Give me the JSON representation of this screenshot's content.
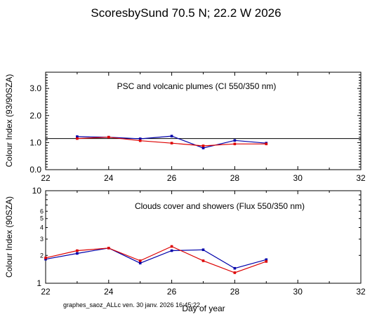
{
  "figure": {
    "title": "ScoresbySund  70.5 N; 22.2 W    2026",
    "footer_note": "graphes_saoz_ALLc  ven. 30 janv. 2026 16:45:22",
    "xlabel": "Day of year"
  },
  "colors": {
    "series_blue": "#0000aa",
    "series_red": "#dd0000",
    "axis": "#000000"
  },
  "chart_data": [
    {
      "type": "line",
      "annotation": "PSC and volcanic plumes (CI 550/350 nm)",
      "ylabel": "Colour Index (93/90SZA)",
      "xlabel": "",
      "xlim": [
        22,
        32
      ],
      "ylim": [
        0,
        3.6
      ],
      "xticks": [
        22,
        24,
        26,
        28,
        30,
        32
      ],
      "yticks": [
        0.0,
        1.0,
        2.0,
        3.0
      ],
      "ytick_labels": [
        "0.0",
        "1.0",
        "2.0",
        "3.0"
      ],
      "reference_line": 1.15,
      "series": [
        {
          "color": "#0000aa",
          "x": [
            23,
            24,
            25,
            26,
            27,
            28,
            29
          ],
          "y": [
            1.22,
            1.2,
            1.14,
            1.24,
            0.8,
            1.08,
            0.98
          ]
        },
        {
          "color": "#dd0000",
          "x": [
            23,
            24,
            25,
            26,
            27,
            28,
            29
          ],
          "y": [
            1.15,
            1.2,
            1.07,
            0.98,
            0.88,
            0.95,
            0.95
          ]
        }
      ]
    },
    {
      "type": "line",
      "annotation": "Clouds cover and showers (Flux 550/350 nm)",
      "ylabel": "Colour Index (90SZA)",
      "xlabel": "Day of year",
      "xlim": [
        22,
        32
      ],
      "ylim": [
        1,
        10
      ],
      "yscale": "log",
      "xticks": [
        22,
        24,
        26,
        28,
        30,
        32
      ],
      "yticks_major": [
        1,
        10
      ],
      "yticks_minor": [
        2,
        3,
        4,
        5,
        6
      ],
      "series": [
        {
          "color": "#0000aa",
          "x": [
            22,
            23,
            24,
            25,
            26,
            27,
            28,
            29
          ],
          "y": [
            1.82,
            2.1,
            2.4,
            1.65,
            2.25,
            2.3,
            1.45,
            1.8
          ]
        },
        {
          "color": "#dd0000",
          "x": [
            22,
            23,
            24,
            25,
            26,
            27,
            28,
            29
          ],
          "y": [
            1.88,
            2.25,
            2.4,
            1.75,
            2.5,
            1.75,
            1.3,
            1.72
          ]
        }
      ]
    }
  ]
}
